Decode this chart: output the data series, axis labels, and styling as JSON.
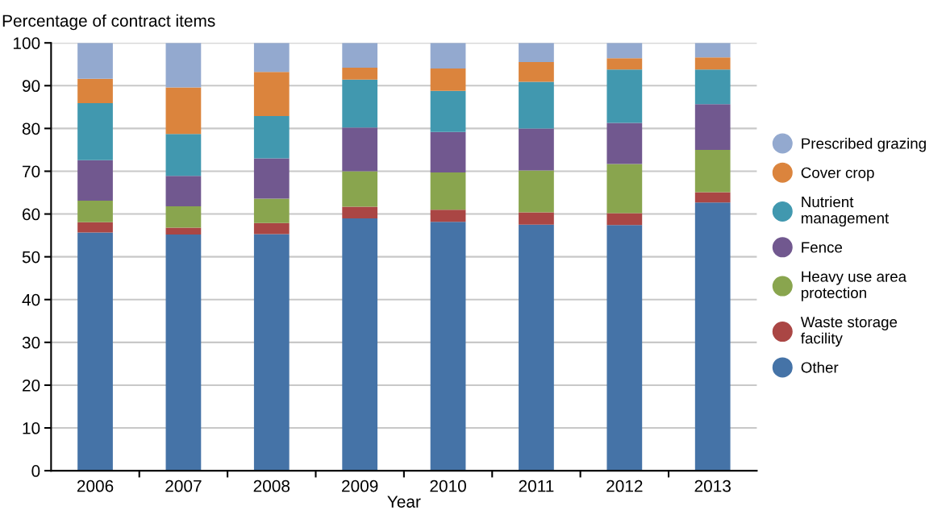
{
  "chart_data": {
    "type": "bar",
    "stacked": true,
    "ylabel": "Percentage of contract items",
    "xlabel": "Year",
    "categories": [
      "2006",
      "2007",
      "2008",
      "2009",
      "2010",
      "2011",
      "2012",
      "2013"
    ],
    "ylim": [
      0,
      100
    ],
    "yticks": [
      0,
      10,
      20,
      30,
      40,
      50,
      60,
      70,
      80,
      90,
      100
    ],
    "grid": "y",
    "legend": "right",
    "series": [
      {
        "name": "Other",
        "color": "#4573a7",
        "values": [
          55.7,
          55.2,
          55.3,
          59.0,
          58.2,
          57.5,
          57.4,
          62.7
        ]
      },
      {
        "name": "Waste storage facility",
        "color": "#aa4644",
        "values": [
          2.4,
          1.6,
          2.6,
          2.7,
          2.8,
          2.9,
          2.8,
          2.4
        ]
      },
      {
        "name": "Heavy use area protection",
        "color": "#89a54e",
        "values": [
          5.0,
          5.0,
          5.7,
          8.3,
          8.7,
          9.8,
          11.5,
          9.9
        ]
      },
      {
        "name": "Fence",
        "color": "#71588f",
        "values": [
          9.5,
          7.1,
          9.4,
          10.2,
          9.5,
          9.8,
          9.6,
          10.7
        ]
      },
      {
        "name": "Nutrient management",
        "color": "#4198af",
        "values": [
          13.3,
          9.8,
          9.9,
          11.2,
          9.6,
          10.9,
          12.5,
          8.1
        ]
      },
      {
        "name": "Cover crop",
        "color": "#db843d",
        "values": [
          5.7,
          10.9,
          10.3,
          2.8,
          5.2,
          4.6,
          2.6,
          2.8
        ]
      },
      {
        "name": "Prescribed grazing",
        "color": "#93a9cf",
        "values": [
          8.4,
          10.4,
          6.8,
          5.8,
          6.0,
          4.5,
          3.6,
          3.4
        ]
      }
    ]
  }
}
